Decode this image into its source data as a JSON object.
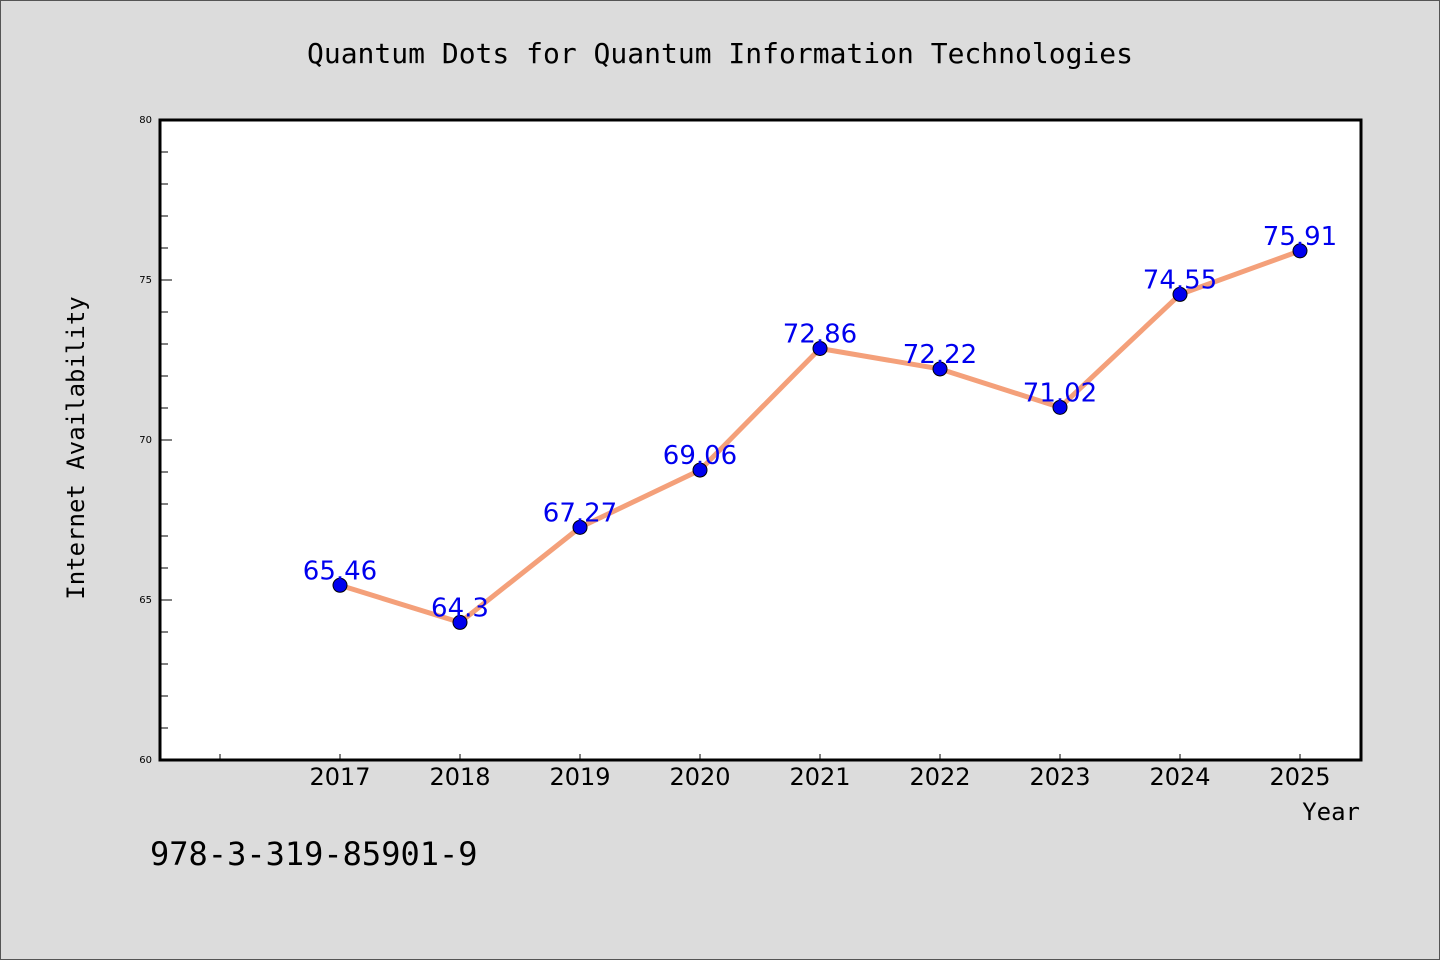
{
  "chart_data": {
    "type": "line",
    "title": "Quantum Dots for Quantum Information Technologies",
    "xlabel": "Year",
    "ylabel": "Internet Availability",
    "categories": [
      "2017",
      "2018",
      "2019",
      "2020",
      "2021",
      "2022",
      "2023",
      "2024",
      "2025"
    ],
    "series": [
      {
        "values": [
          65.46,
          64.3,
          67.27,
          69.06,
          72.86,
          72.22,
          71.02,
          74.55,
          75.91
        ],
        "data_labels": [
          "65.46",
          "64.3",
          "67.27",
          "69.06",
          "72.86",
          "72.22",
          "71.02",
          "74.55",
          "75.91"
        ]
      }
    ],
    "ylim": [
      60,
      80
    ],
    "yticks": [
      "60",
      "65",
      "70",
      "75",
      "80"
    ],
    "grid": false,
    "legend": "none",
    "colors": {
      "line": "#f4a07a",
      "marker": "#0000ee",
      "marker_edge": "#000000",
      "data_label": "#0000ee",
      "background": "#dcdcdc",
      "plot_background": "#ffffff"
    }
  },
  "footer_text": "978-3-319-85901-9"
}
